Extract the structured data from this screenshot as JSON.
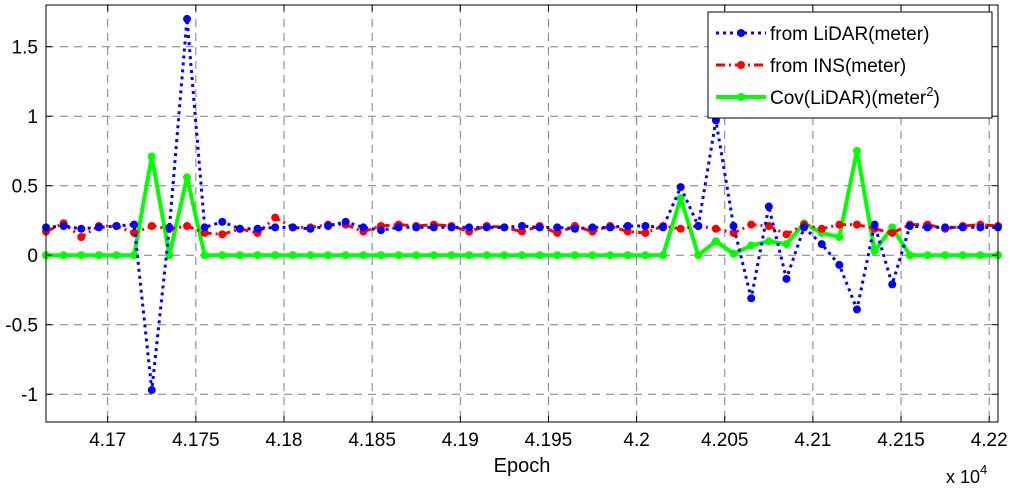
{
  "chart_data": {
    "type": "line",
    "xlabel": "Epoch",
    "x_multiplier_label": "x 10",
    "x_multiplier_exp": "4",
    "xlim": [
      41665,
      42205
    ],
    "ylim": [
      -1.2,
      1.8
    ],
    "grid": true,
    "legend_position": "top-right",
    "x_ticks": [
      41700,
      41750,
      41800,
      41850,
      41900,
      41950,
      42000,
      42050,
      42100,
      42150,
      42200
    ],
    "x_tick_labels": [
      "4.17",
      "4.175",
      "4.18",
      "4.185",
      "4.19",
      "4.195",
      "4.2",
      "4.205",
      "4.21",
      "4.215",
      "4.22"
    ],
    "y_ticks": [
      -1,
      -0.5,
      0,
      0.5,
      1,
      1.5
    ],
    "y_tick_labels": [
      "-1",
      "-0.5",
      "0",
      "0.5",
      "1",
      "1.5"
    ],
    "x": [
      41665,
      41675,
      41685,
      41695,
      41705,
      41715,
      41725,
      41735,
      41745,
      41755,
      41765,
      41775,
      41785,
      41795,
      41805,
      41815,
      41825,
      41835,
      41845,
      41855,
      41865,
      41875,
      41885,
      41895,
      41905,
      41915,
      41925,
      41935,
      41945,
      41955,
      41965,
      41975,
      41985,
      41995,
      42005,
      42015,
      42025,
      42035,
      42045,
      42055,
      42065,
      42075,
      42085,
      42095,
      42105,
      42115,
      42125,
      42135,
      42145,
      42155,
      42165,
      42175,
      42185,
      42195,
      42205
    ],
    "series": [
      {
        "name": "from LiDAR(meter)",
        "color": "#0000ff",
        "style": "dotted-markers",
        "values": [
          0.2,
          0.21,
          0.19,
          0.2,
          0.21,
          0.22,
          -0.97,
          0.2,
          1.7,
          0.2,
          0.24,
          0.19,
          0.19,
          0.2,
          0.2,
          0.19,
          0.21,
          0.24,
          0.2,
          0.18,
          0.2,
          0.2,
          0.2,
          0.2,
          0.2,
          0.2,
          0.2,
          0.21,
          0.2,
          0.2,
          0.19,
          0.2,
          0.2,
          0.21,
          0.21,
          0.2,
          0.49,
          0.21,
          0.97,
          0.21,
          -0.31,
          0.35,
          -0.17,
          0.2,
          0.08,
          -0.07,
          -0.39,
          0.22,
          -0.21,
          0.21,
          0.2,
          0.2,
          0.2,
          0.2,
          0.2
        ]
      },
      {
        "name": "from INS(meter)",
        "color": "#ff0000",
        "style": "dash-dot-markers",
        "values": [
          0.17,
          0.23,
          0.13,
          0.21,
          0.21,
          0.16,
          0.21,
          0.19,
          0.21,
          0.16,
          0.15,
          0.19,
          0.16,
          0.27,
          0.2,
          0.2,
          0.22,
          0.22,
          0.17,
          0.21,
          0.22,
          0.21,
          0.22,
          0.21,
          0.17,
          0.21,
          0.2,
          0.17,
          0.21,
          0.16,
          0.21,
          0.17,
          0.21,
          0.17,
          0.16,
          0.21,
          0.19,
          0.21,
          0.19,
          0.16,
          0.22,
          0.21,
          0.15,
          0.22,
          0.19,
          0.22,
          0.22,
          0.19,
          0.16,
          0.22,
          0.22,
          0.19,
          0.21,
          0.22,
          0.21
        ]
      },
      {
        "name": "Cov(LiDAR)(meter",
        "name_sup": "2",
        "name_suffix": ")",
        "color": "#00ff00",
        "style": "solid-markers",
        "values": [
          0,
          0,
          0,
          0,
          0,
          0,
          0.71,
          0,
          0.56,
          0,
          0,
          0,
          0,
          0,
          0,
          0,
          0,
          0,
          0,
          0,
          0,
          0,
          0,
          0,
          0,
          0,
          0,
          0,
          0,
          0,
          0,
          0,
          0,
          0,
          0,
          0,
          0.41,
          0,
          0.1,
          0.01,
          0.07,
          0.1,
          0.08,
          0.23,
          0.16,
          0.13,
          0.75,
          0.03,
          0.2,
          0,
          0,
          0,
          0,
          0,
          0
        ]
      }
    ]
  }
}
